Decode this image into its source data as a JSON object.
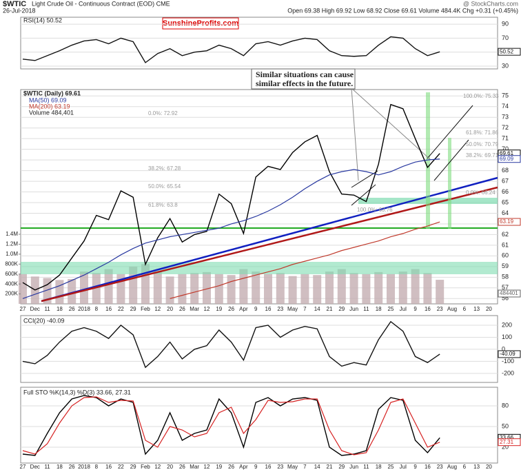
{
  "header": {
    "symbol": "$WTIC",
    "name": "Light Crude Oil - Continuous Contract (EOD) CME",
    "date": "26-Jul-2018",
    "quote": "Open 69.38 High 69.92 Low 68.92 Close 69.61 Volume 484.4K Chg +0.31 (+0.45%)",
    "source": "@ StockCharts.com",
    "brand": "SunshineProfits.com"
  },
  "annotation": [
    "Similar situations can cause",
    "similar effects in the future."
  ],
  "fibs": [
    "100.0%: 75.33",
    "61.8%: 71.86",
    "50.0%: 70.79",
    "38.2%: 69.71",
    "0.0%: 66.24",
    "0.0%: 72.92",
    "38.2%: 67.28",
    "50.0%: 65.54",
    "61.8%: 63.8",
    "100.0%: 63.76"
  ],
  "chart_data": [
    {
      "type": "line",
      "title": "RSI(14) 50.52",
      "ylim": [
        26,
        100
      ],
      "yticks": [
        90,
        70,
        50,
        30
      ],
      "series": [
        {
          "name": "RSI(14)",
          "color": "#111",
          "values": [
            40,
            38,
            45,
            52,
            60,
            66,
            68,
            62,
            70,
            65,
            35,
            48,
            55,
            45,
            50,
            52,
            60,
            55,
            45,
            62,
            65,
            60,
            66,
            70,
            68,
            52,
            45,
            44,
            45,
            60,
            72,
            70,
            55,
            45,
            50.52,
            null,
            null,
            null,
            null
          ]
        }
      ]
    },
    {
      "type": "line",
      "ylim": [
        55.5,
        75.6
      ],
      "yticks": [
        56,
        57,
        58,
        59,
        60,
        61,
        62,
        63,
        64,
        65,
        66,
        67,
        68,
        69,
        70,
        71,
        72,
        73,
        74,
        75
      ],
      "categories": [
        "27",
        "Dec",
        "11",
        "18",
        "26",
        "2018",
        "8",
        "16",
        "22",
        "29",
        "Feb",
        "12",
        "20",
        "26",
        "Mar",
        "12",
        "19",
        "26",
        "Apr",
        "9",
        "16",
        "23",
        "May",
        "7",
        "14",
        "21",
        "29",
        "Jun",
        "11",
        "18",
        "25",
        "Jul",
        "9",
        "16",
        "23",
        "Aug",
        "6",
        "13",
        "20"
      ],
      "series": [
        {
          "name": "$WTIC (Daily) 69.61",
          "color": "#000",
          "values": [
            57.5,
            56.8,
            57.3,
            58.2,
            59.8,
            61.4,
            63.8,
            63.4,
            66.1,
            65.5,
            59.2,
            61.7,
            63.5,
            61.3,
            62.0,
            62.3,
            65.8,
            64.9,
            62.1,
            67.4,
            68.4,
            68.1,
            69.7,
            70.7,
            71.3,
            67.9,
            65.8,
            65.7,
            65.1,
            68.6,
            74.2,
            73.8,
            71.0,
            68.3,
            69.61,
            null,
            null,
            null,
            null
          ]
        },
        {
          "name": "MA(50) 69.09",
          "color": "#2838a0",
          "values": [
            56.0,
            56.4,
            56.8,
            57.2,
            57.7,
            58.2,
            58.8,
            59.4,
            60.1,
            60.7,
            61.2,
            61.5,
            61.8,
            62.0,
            62.2,
            62.4,
            62.6,
            63.0,
            63.3,
            63.7,
            64.2,
            64.8,
            65.5,
            66.3,
            67.0,
            67.6,
            67.9,
            68.1,
            67.9,
            67.6,
            67.9,
            68.4,
            68.8,
            69.0,
            69.09,
            null,
            null,
            null,
            null
          ]
        },
        {
          "name": "MA(200) 63.19",
          "color": "#c0392b",
          "values": [
            null,
            null,
            null,
            null,
            null,
            null,
            null,
            null,
            null,
            null,
            null,
            null,
            56.0,
            56.3,
            56.6,
            56.9,
            57.2,
            57.6,
            57.9,
            58.2,
            58.5,
            58.8,
            59.2,
            59.5,
            59.8,
            60.1,
            60.5,
            60.8,
            61.1,
            61.4,
            61.8,
            62.1,
            62.5,
            62.8,
            63.19,
            null,
            null,
            null,
            null
          ]
        }
      ],
      "volume": {
        "name": "Volume 484,401",
        "color": "#c4aeb2",
        "vlim": [
          0,
          1400000
        ],
        "vticks": [
          {
            "value": 200000,
            "label": "200K"
          },
          {
            "value": 400000,
            "label": "400K"
          },
          {
            "value": 600000,
            "label": "600K"
          },
          {
            "value": 800000,
            "label": "800K"
          },
          {
            "value": 1000000,
            "label": "1.0M"
          },
          {
            "value": 1200000,
            "label": "1.2M"
          },
          {
            "value": 1400000,
            "label": "1.4M"
          }
        ],
        "values": [
          600000,
          550000,
          520000,
          480000,
          500000,
          650000,
          620000,
          700000,
          600000,
          750000,
          800000,
          650000,
          550000,
          600000,
          620000,
          640000,
          600000,
          580000,
          700000,
          650000,
          600000,
          620000,
          560000,
          600000,
          580000,
          650000,
          700000,
          620000,
          600000,
          640000,
          600000,
          650000,
          700000,
          620000,
          484401,
          null,
          null,
          null,
          null
        ]
      }
    },
    {
      "type": "line",
      "title": "CCI(20) -40.09",
      "ylim": [
        -275,
        280
      ],
      "yticks": [
        200,
        100,
        0,
        -100,
        -200
      ],
      "series": [
        {
          "name": "CCI(20)",
          "color": "#111",
          "values": [
            -100,
            -120,
            -50,
            60,
            150,
            180,
            150,
            90,
            200,
            120,
            -150,
            -60,
            60,
            -80,
            0,
            30,
            160,
            60,
            -90,
            180,
            200,
            100,
            160,
            190,
            170,
            -60,
            -140,
            -110,
            -130,
            80,
            230,
            150,
            -60,
            -110,
            -40.09,
            null,
            null,
            null,
            null
          ]
        }
      ]
    },
    {
      "type": "line",
      "title": "Full STO %K(14,3) %D(3) 33.66, 27.31",
      "ylim": [
        -3,
        107
      ],
      "yticks": [
        80,
        50,
        20
      ],
      "categories": [
        "27",
        "Dec",
        "11",
        "18",
        "26",
        "2018",
        "8",
        "16",
        "22",
        "29",
        "Feb",
        "12",
        "20",
        "26",
        "Mar",
        "12",
        "19",
        "26",
        "Apr",
        "9",
        "16",
        "23",
        "May",
        "7",
        "14",
        "21",
        "29",
        "Jun",
        "11",
        "18",
        "25",
        "Jul",
        "9",
        "16",
        "23",
        "Aug",
        "6",
        "13",
        "20"
      ],
      "series": [
        {
          "name": "%K(14,3)",
          "color": "#000",
          "values": [
            10,
            8,
            40,
            70,
            90,
            95,
            92,
            80,
            90,
            85,
            10,
            30,
            70,
            30,
            40,
            45,
            90,
            70,
            20,
            85,
            92,
            80,
            90,
            92,
            88,
            20,
            8,
            10,
            15,
            75,
            92,
            88,
            30,
            12,
            33.66,
            null,
            null,
            null,
            null
          ]
        },
        {
          "name": "%D(3)",
          "color": "#d62020",
          "values": [
            15,
            10,
            25,
            55,
            80,
            92,
            93,
            85,
            88,
            87,
            30,
            20,
            50,
            45,
            35,
            40,
            70,
            78,
            40,
            60,
            88,
            85,
            86,
            90,
            90,
            45,
            15,
            9,
            12,
            45,
            85,
            90,
            55,
            20,
            27.31,
            null,
            null,
            null,
            null
          ]
        }
      ]
    }
  ]
}
